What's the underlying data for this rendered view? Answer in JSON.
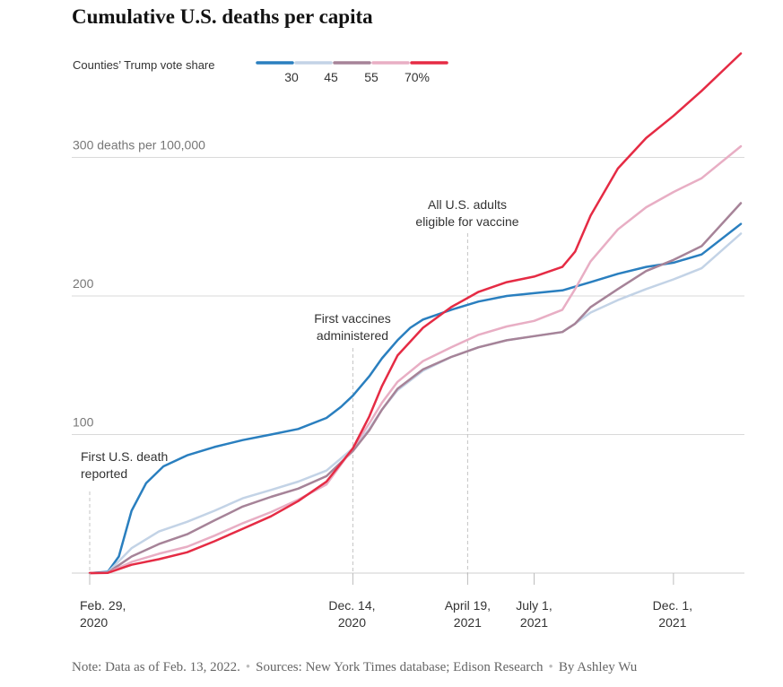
{
  "chart_data": {
    "type": "line",
    "title": "Cumulative U.S. deaths per capita",
    "legend": {
      "title": "Counties’ Trump vote share",
      "placement": "top-left",
      "entries": [
        "30",
        "45",
        "55",
        "70%"
      ]
    },
    "y_axis": {
      "ticks": [
        {
          "value": 300,
          "label": "300 deaths per 100,000"
        },
        {
          "value": 200,
          "label": "200"
        },
        {
          "value": 100,
          "label": "100"
        }
      ],
      "ylim": [
        0,
        380
      ],
      "grid": true
    },
    "x_axis": {
      "range": [
        "2020-02-29",
        "2022-02-13"
      ],
      "ticks": [
        {
          "date": "2020-02-29",
          "label1": "Feb. 29,",
          "label2": "2020"
        },
        {
          "date": "2020-12-14",
          "label1": "Dec. 14,",
          "label2": "2020"
        },
        {
          "date": "2021-04-19",
          "label1": "April 19,",
          "label2": "2021"
        },
        {
          "date": "2021-07-01",
          "label1": "July 1,",
          "label2": "2021"
        },
        {
          "date": "2021-12-01",
          "label1": "Dec. 1,",
          "label2": "2021"
        }
      ]
    },
    "annotations": [
      {
        "date": "2020-02-29",
        "lines": [
          "First U.S. death",
          "reported"
        ]
      },
      {
        "date": "2020-12-14",
        "lines": [
          "First vaccines",
          "administered"
        ]
      },
      {
        "date": "2021-04-19",
        "lines": [
          "All U.S. adults",
          "eligible for vaccine"
        ]
      }
    ],
    "series": [
      {
        "name": "30",
        "color": "#2a7fbf",
        "points": [
          [
            "2020-02-29",
            0
          ],
          [
            "2020-03-20",
            1
          ],
          [
            "2020-04-01",
            12
          ],
          [
            "2020-04-15",
            45
          ],
          [
            "2020-05-01",
            65
          ],
          [
            "2020-05-20",
            77
          ],
          [
            "2020-06-15",
            85
          ],
          [
            "2020-07-15",
            91
          ],
          [
            "2020-08-15",
            96
          ],
          [
            "2020-09-15",
            100
          ],
          [
            "2020-10-15",
            104
          ],
          [
            "2020-11-15",
            112
          ],
          [
            "2020-12-01",
            120
          ],
          [
            "2020-12-14",
            128
          ],
          [
            "2021-01-01",
            142
          ],
          [
            "2021-01-15",
            155
          ],
          [
            "2021-02-01",
            168
          ],
          [
            "2021-02-15",
            177
          ],
          [
            "2021-03-01",
            183
          ],
          [
            "2021-04-01",
            190
          ],
          [
            "2021-05-01",
            196
          ],
          [
            "2021-06-01",
            200
          ],
          [
            "2021-07-01",
            202
          ],
          [
            "2021-08-01",
            204
          ],
          [
            "2021-09-01",
            210
          ],
          [
            "2021-10-01",
            216
          ],
          [
            "2021-11-01",
            221
          ],
          [
            "2021-12-01",
            224
          ],
          [
            "2022-01-01",
            230
          ],
          [
            "2022-02-13",
            252
          ]
        ]
      },
      {
        "name": "45",
        "color": "#c3d3e6",
        "points": [
          [
            "2020-02-29",
            0
          ],
          [
            "2020-03-20",
            0.5
          ],
          [
            "2020-04-15",
            18
          ],
          [
            "2020-05-15",
            30
          ],
          [
            "2020-06-15",
            37
          ],
          [
            "2020-07-15",
            45
          ],
          [
            "2020-08-15",
            54
          ],
          [
            "2020-09-15",
            60
          ],
          [
            "2020-10-15",
            66
          ],
          [
            "2020-11-15",
            74
          ],
          [
            "2020-12-14",
            90
          ],
          [
            "2021-01-01",
            104
          ],
          [
            "2021-01-15",
            118
          ],
          [
            "2021-02-01",
            132
          ],
          [
            "2021-03-01",
            146
          ],
          [
            "2021-04-01",
            156
          ],
          [
            "2021-05-01",
            163
          ],
          [
            "2021-06-01",
            168
          ],
          [
            "2021-07-01",
            171
          ],
          [
            "2021-08-01",
            174
          ],
          [
            "2021-08-15",
            180
          ],
          [
            "2021-09-01",
            188
          ],
          [
            "2021-10-01",
            197
          ],
          [
            "2021-11-01",
            205
          ],
          [
            "2021-12-01",
            212
          ],
          [
            "2022-01-01",
            220
          ],
          [
            "2022-02-13",
            245
          ]
        ]
      },
      {
        "name": "55",
        "color": "#a68398",
        "points": [
          [
            "2020-02-29",
            0
          ],
          [
            "2020-03-20",
            0.3
          ],
          [
            "2020-04-15",
            12
          ],
          [
            "2020-05-15",
            21
          ],
          [
            "2020-06-15",
            28
          ],
          [
            "2020-07-15",
            38
          ],
          [
            "2020-08-15",
            48
          ],
          [
            "2020-09-15",
            55
          ],
          [
            "2020-10-15",
            61
          ],
          [
            "2020-11-15",
            70
          ],
          [
            "2020-12-14",
            88
          ],
          [
            "2021-01-01",
            103
          ],
          [
            "2021-01-15",
            118
          ],
          [
            "2021-02-01",
            133
          ],
          [
            "2021-03-01",
            147
          ],
          [
            "2021-04-01",
            156
          ],
          [
            "2021-05-01",
            163
          ],
          [
            "2021-06-01",
            168
          ],
          [
            "2021-07-01",
            171
          ],
          [
            "2021-08-01",
            174
          ],
          [
            "2021-08-15",
            180
          ],
          [
            "2021-09-01",
            192
          ],
          [
            "2021-10-01",
            205
          ],
          [
            "2021-11-01",
            218
          ],
          [
            "2021-12-01",
            226
          ],
          [
            "2022-01-01",
            236
          ],
          [
            "2022-02-13",
            267
          ]
        ]
      },
      {
        "name": "70%",
        "color": "#e8aec4",
        "points": [
          [
            "2020-02-29",
            0
          ],
          [
            "2020-03-20",
            0.2
          ],
          [
            "2020-04-15",
            8
          ],
          [
            "2020-05-15",
            14
          ],
          [
            "2020-06-15",
            19
          ],
          [
            "2020-07-15",
            27
          ],
          [
            "2020-08-15",
            36
          ],
          [
            "2020-09-15",
            44
          ],
          [
            "2020-10-15",
            53
          ],
          [
            "2020-11-15",
            64
          ],
          [
            "2020-12-14",
            90
          ],
          [
            "2021-01-01",
            108
          ],
          [
            "2021-01-15",
            123
          ],
          [
            "2021-02-01",
            138
          ],
          [
            "2021-03-01",
            153
          ],
          [
            "2021-04-01",
            163
          ],
          [
            "2021-05-01",
            172
          ],
          [
            "2021-06-01",
            178
          ],
          [
            "2021-07-01",
            182
          ],
          [
            "2021-08-01",
            190
          ],
          [
            "2021-08-15",
            205
          ],
          [
            "2021-09-01",
            225
          ],
          [
            "2021-10-01",
            248
          ],
          [
            "2021-11-01",
            264
          ],
          [
            "2021-12-01",
            275
          ],
          [
            "2022-01-01",
            285
          ],
          [
            "2022-02-13",
            308
          ]
        ]
      },
      {
        "name": "70%",
        "color": "#e52b44",
        "points": [
          [
            "2020-02-29",
            0
          ],
          [
            "2020-03-20",
            0.2
          ],
          [
            "2020-04-15",
            6
          ],
          [
            "2020-05-15",
            10
          ],
          [
            "2020-06-15",
            15
          ],
          [
            "2020-07-15",
            23
          ],
          [
            "2020-08-15",
            32
          ],
          [
            "2020-09-15",
            41
          ],
          [
            "2020-10-15",
            52
          ],
          [
            "2020-11-15",
            66
          ],
          [
            "2020-12-14",
            90
          ],
          [
            "2021-01-01",
            113
          ],
          [
            "2021-01-15",
            135
          ],
          [
            "2021-02-01",
            157
          ],
          [
            "2021-03-01",
            177
          ],
          [
            "2021-04-01",
            192
          ],
          [
            "2021-05-01",
            203
          ],
          [
            "2021-06-01",
            210
          ],
          [
            "2021-07-01",
            214
          ],
          [
            "2021-08-01",
            221
          ],
          [
            "2021-08-15",
            232
          ],
          [
            "2021-09-01",
            258
          ],
          [
            "2021-10-01",
            292
          ],
          [
            "2021-11-01",
            314
          ],
          [
            "2021-12-01",
            330
          ],
          [
            "2022-01-01",
            348
          ],
          [
            "2022-02-13",
            375
          ]
        ]
      }
    ]
  },
  "note": {
    "data_note": "Note: Data as of Feb. 13, 2022.",
    "sources": "Sources: New York Times database; Edison Research",
    "byline": "By Ashley Wu"
  }
}
